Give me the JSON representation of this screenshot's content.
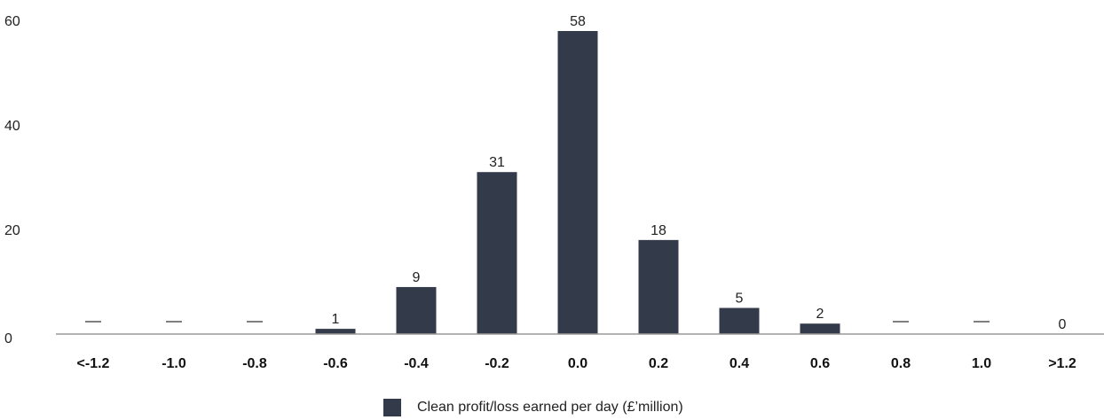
{
  "chart_data": {
    "type": "bar",
    "categories": [
      "<-1.2",
      "-1.0",
      "-0.8",
      "-0.6",
      "-0.4",
      "-0.2",
      "0.0",
      "0.2",
      "0.4",
      "0.6",
      "0.8",
      "1.0",
      ">1.2"
    ],
    "series": [
      {
        "name": "Clean profit/loss earned per day (£’million)",
        "values": [
          0,
          0,
          0,
          1,
          9,
          31,
          58,
          18,
          5,
          2,
          0,
          0,
          0
        ],
        "data_labels": [
          "—",
          "—",
          "—",
          "1",
          "9",
          "31",
          "58",
          "18",
          "5",
          "2",
          "—",
          "—",
          "0"
        ]
      }
    ],
    "y_ticks": [
      0,
      20,
      40,
      60
    ],
    "ylim": [
      0,
      60
    ],
    "grid": false,
    "legend_position": "bottom-center",
    "bar_color": "#333a4a",
    "axis_color": "#999999"
  }
}
